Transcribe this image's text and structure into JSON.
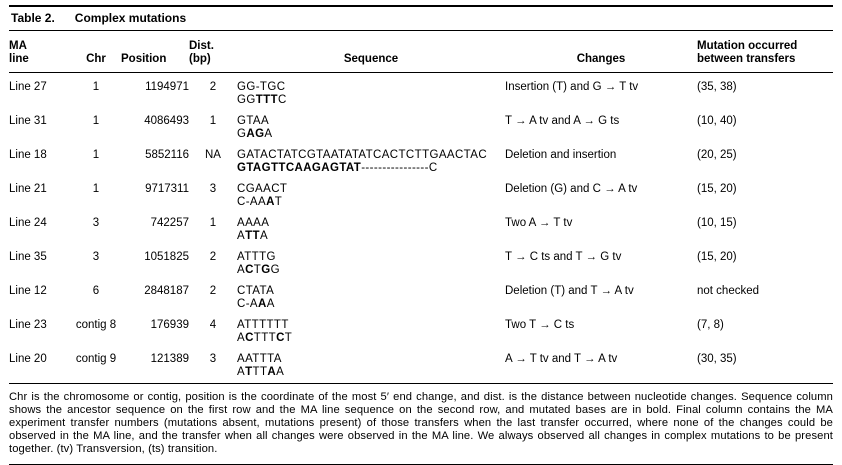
{
  "title": {
    "label": "Table 2.",
    "text": "Complex mutations"
  },
  "table": {
    "headers": {
      "ma_line": "MA\nline",
      "chr": "Chr",
      "position": "Position",
      "dist": "Dist.\n(bp)",
      "sequence": "Sequence",
      "changes": "Changes",
      "transfers": "Mutation occurred\nbetween transfers"
    },
    "rows": [
      {
        "line": "Line 27",
        "chr": "1",
        "position": "1194971",
        "dist": "2",
        "seq1": "GG-TGC",
        "seq2": "GG[TTT]C",
        "changes": "Insertion (T) and G → T tv",
        "transfers": "(35, 38)"
      },
      {
        "line": "Line 31",
        "chr": "1",
        "position": "4086493",
        "dist": "1",
        "seq1": "GTAA",
        "seq2": "G[AG]A",
        "changes": "T → A tv and A → G ts",
        "transfers": "(10, 40)"
      },
      {
        "line": "Line 18",
        "chr": "1",
        "position": "5852116",
        "dist": "NA",
        "seq1": "GATACTATCGTAATATATCACTCTTGAACTAC",
        "seq2": "[GTAGTTCAAGAGTAT]----------------C",
        "changes": "Deletion and insertion",
        "transfers": "(20, 25)"
      },
      {
        "line": "Line 21",
        "chr": "1",
        "position": "9717311",
        "dist": "3",
        "seq1": "CGAACT",
        "seq2": "C-AA[A]T",
        "changes": "Deletion (G) and C → A tv",
        "transfers": "(15, 20)"
      },
      {
        "line": "Line 24",
        "chr": "3",
        "position": "742257",
        "dist": "1",
        "seq1": "AAAA",
        "seq2": "A[TT]A",
        "changes": "Two A → T tv",
        "transfers": "(10, 15)"
      },
      {
        "line": "Line 35",
        "chr": "3",
        "position": "1051825",
        "dist": "2",
        "seq1": "ATTTG",
        "seq2": "A[C]T[G]G",
        "changes": "T → C ts and T → G tv",
        "transfers": "(15, 20)"
      },
      {
        "line": "Line 12",
        "chr": "6",
        "position": "2848187",
        "dist": "2",
        "seq1": "CTATA",
        "seq2": "C-A[A]A",
        "changes": "Deletion (T) and T → A tv",
        "transfers": "not checked"
      },
      {
        "line": "Line 23",
        "chr": "contig 8",
        "position": "176939",
        "dist": "4",
        "seq1": "ATTTTTT",
        "seq2": "A[C]TTT[C]T",
        "changes": "Two T → C ts",
        "transfers": "(7, 8)"
      },
      {
        "line": "Line 20",
        "chr": "contig 9",
        "position": "121389",
        "dist": "3",
        "seq1": "AATTTA",
        "seq2": "A[T]TT[A]A",
        "changes": "A → T tv and T → A tv",
        "transfers": "(30, 35)"
      }
    ]
  },
  "footnote": "Chr is the chromosome or contig, position is the coordinate of the most 5′ end change, and dist. is the distance between nucleotide changes. Sequence column shows the ancestor sequence on the first row and the MA line sequence on the second row, and mutated bases are in bold. Final column contains the MA experiment transfer numbers (mutations absent, mutations present) of those transfers when the last transfer occurred, where none of the changes could be observed in the MA line, and the transfer when all changes were observed in the MA line. We always observed all changes in complex mutations to be present together. (tv) Transversion, (ts) transition."
}
